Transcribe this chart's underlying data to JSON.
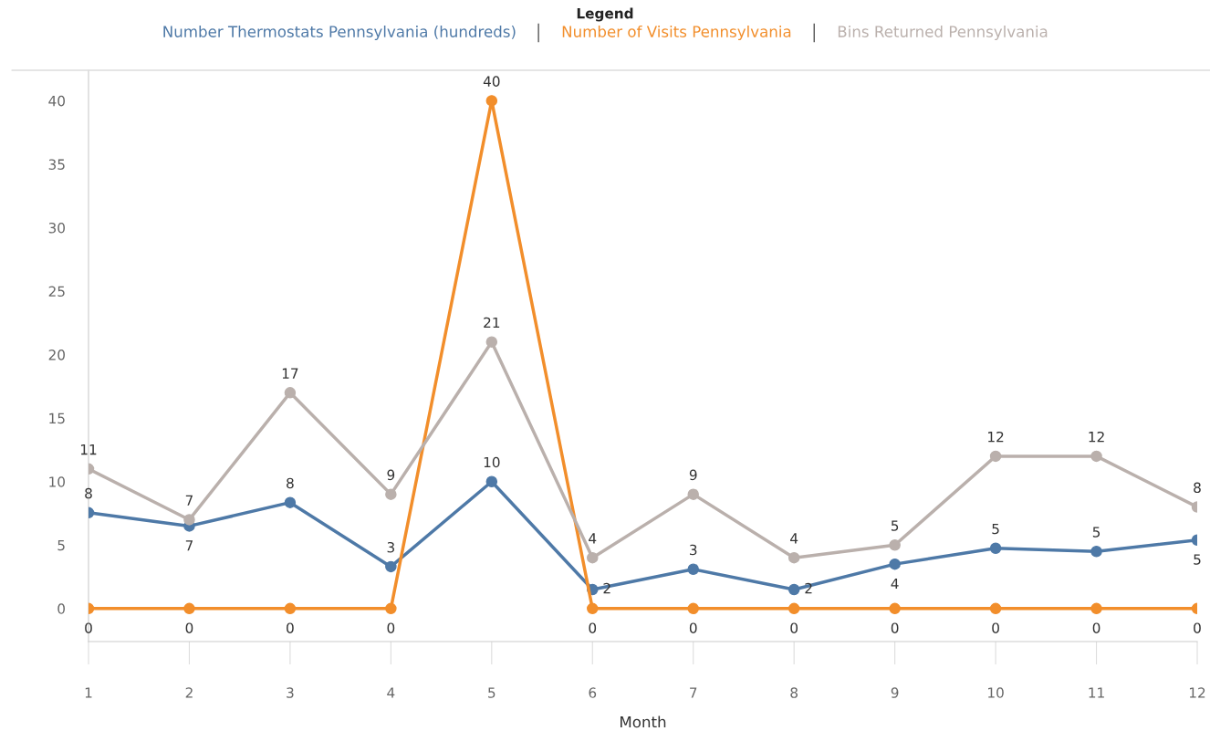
{
  "chart_data": {
    "type": "line",
    "xlabel": "Month",
    "legend_title": "Legend",
    "legend": "top",
    "categories": [
      "1",
      "2",
      "3",
      "4",
      "5",
      "6",
      "7",
      "8",
      "9",
      "10",
      "11",
      "12"
    ],
    "ylim": [
      -2.6,
      42.4
    ],
    "yticks": [
      0,
      5,
      10,
      15,
      20,
      25,
      30,
      35,
      40
    ],
    "grid": false,
    "marker": "circle",
    "line_style": "solid",
    "series": [
      {
        "name": "Number Thermostats Pennsylvania (hundreds)",
        "color": "#4e79a7",
        "values": [
          7.55,
          6.5,
          8.35,
          3.3,
          10,
          1.5,
          3.1,
          1.5,
          3.5,
          4.75,
          4.5,
          5.4
        ],
        "value_labels": [
          "8",
          "7",
          "8",
          "3",
          "10",
          "2",
          "3",
          "2",
          "4",
          "5",
          "5",
          "5"
        ]
      },
      {
        "name": "Number of Visits Pennsylvania",
        "color": "#f28e2b",
        "values": [
          0,
          0,
          0,
          0,
          40,
          0,
          0,
          0,
          0,
          0,
          0,
          0
        ],
        "value_labels": [
          "0",
          "0",
          "0",
          "0",
          "40",
          "0",
          "0",
          "0",
          "0",
          "0",
          "0",
          "0"
        ]
      },
      {
        "name": "Bins Returned Pennsylvania",
        "color": "#bab0ac",
        "values": [
          11,
          7,
          17,
          9,
          21,
          4,
          9,
          4,
          5,
          12,
          12,
          8
        ],
        "value_labels": [
          "11",
          "7",
          "17",
          "9",
          "21",
          "4",
          "9",
          "4",
          "5",
          "12",
          "12",
          "8"
        ]
      }
    ]
  }
}
